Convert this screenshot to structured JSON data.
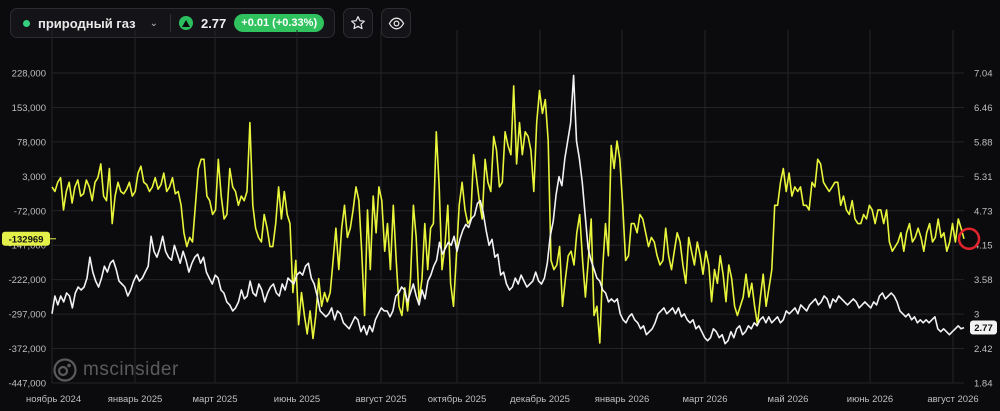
{
  "header": {
    "symbol_name": "природный газ",
    "price": "2.77",
    "change": "+0.01 (+0.33%)",
    "status_color": "#35d07f",
    "icons": [
      "chevron-down-icon",
      "triangle-up-icon",
      "star-icon",
      "eye-icon"
    ]
  },
  "watermark": {
    "brand": "mscinsider"
  },
  "chart_data": {
    "type": "line",
    "left_axis": {
      "ticks": [
        "228,000",
        "153,000",
        "78,000",
        "3,000",
        "-72,000",
        "-147,000",
        "-222,000",
        "-297,000",
        "-372,000",
        "-447,000"
      ],
      "ylim": [
        -447000,
        228000
      ],
      "current_label": "-132969",
      "current_value": -132969,
      "label_color": "#e4f04a"
    },
    "right_axis": {
      "ticks": [
        "7.04",
        "6.46",
        "5.88",
        "5.31",
        "4.73",
        "4.15",
        "3.58",
        "3",
        "2.42",
        "1.84"
      ],
      "ylim": [
        1.84,
        7.04
      ],
      "current_label": "2.77",
      "current_value": 2.77
    },
    "x_ticks": [
      "ноябрь 2024",
      "январь 2025",
      "март 2025",
      "июнь 2025",
      "август 2025",
      "октябрь 2025",
      "декабрь 2025",
      "январь 2026",
      "март 2026",
      "май 2026",
      "июнь 2026",
      "август 2026"
    ],
    "grid": true,
    "series": [
      {
        "color": "#e8f53a",
        "axis": "left",
        "values": [
          -20000,
          -30000,
          -10000,
          0,
          -70000,
          -30000,
          -10000,
          -55000,
          -20000,
          -5000,
          -40000,
          -35000,
          -5000,
          -20000,
          -50000,
          -10000,
          0,
          30000,
          -40000,
          -50000,
          20000,
          -100000,
          -40000,
          -10000,
          -30000,
          -35000,
          -25000,
          -10000,
          -40000,
          -30000,
          10000,
          25000,
          -10000,
          -15000,
          -30000,
          -20000,
          0,
          -25000,
          -15000,
          10000,
          -30000,
          -20000,
          0,
          -35000,
          -30000,
          -60000,
          -120000,
          -150000,
          -130000,
          -140000,
          -60000,
          20000,
          40000,
          40000,
          -40000,
          -50000,
          -80000,
          -70000,
          40000,
          -40000,
          -90000,
          -80000,
          20000,
          -20000,
          -30000,
          -60000,
          -40000,
          -50000,
          -30000,
          120000,
          -60000,
          -110000,
          -130000,
          -140000,
          -80000,
          -110000,
          -150000,
          -150000,
          -100000,
          -20000,
          -90000,
          -30000,
          -80000,
          -100000,
          -250000,
          -180000,
          -320000,
          -250000,
          -300000,
          -340000,
          -290000,
          -350000,
          -300000,
          -220000,
          -280000,
          -250000,
          -270000,
          -250000,
          -180000,
          -110000,
          -200000,
          -110000,
          -60000,
          -130000,
          -110000,
          -70000,
          -20000,
          -50000,
          -160000,
          -300000,
          -70000,
          -200000,
          -40000,
          -120000,
          -20000,
          -50000,
          -160000,
          -100000,
          -200000,
          -60000,
          -180000,
          -280000,
          -300000,
          -240000,
          -290000,
          -220000,
          -60000,
          -130000,
          -270000,
          -220000,
          -100000,
          -200000,
          -110000,
          -100000,
          100000,
          -20000,
          -200000,
          -150000,
          -60000,
          -230000,
          -280000,
          -170000,
          -60000,
          -10000,
          -70000,
          -100000,
          -90000,
          50000,
          0,
          -50000,
          -90000,
          40000,
          -10000,
          -30000,
          90000,
          60000,
          -20000,
          -10000,
          100000,
          70000,
          50000,
          200000,
          30000,
          120000,
          50000,
          100000,
          90000,
          60000,
          -30000,
          120000,
          190000,
          140000,
          170000,
          80000,
          -180000,
          -200000,
          -190000,
          -150000,
          -280000,
          -220000,
          -170000,
          -160000,
          -190000,
          -120000,
          -80000,
          -180000,
          -260000,
          -180000,
          -90000,
          -300000,
          -280000,
          -360000,
          -200000,
          -100000,
          -170000,
          70000,
          20000,
          80000,
          40000,
          -60000,
          -180000,
          -170000,
          -100000,
          -100000,
          -120000,
          -80000,
          -90000,
          -120000,
          -150000,
          -130000,
          -140000,
          -170000,
          -190000,
          -180000,
          -110000,
          -170000,
          -200000,
          -160000,
          -120000,
          -140000,
          -190000,
          -230000,
          -130000,
          -160000,
          -190000,
          -140000,
          -170000,
          -210000,
          -160000,
          -190000,
          -270000,
          -200000,
          -230000,
          -170000,
          -210000,
          -270000,
          -190000,
          -220000,
          -280000,
          -300000,
          -280000,
          -260000,
          -210000,
          -260000,
          -230000,
          -280000,
          -320000,
          -260000,
          -210000,
          -280000,
          -240000,
          -200000,
          -60000,
          -60000,
          -10000,
          20000,
          -30000,
          10000,
          -40000,
          -20000,
          -30000,
          -20000,
          -60000,
          -60000,
          -70000,
          -10000,
          -20000,
          40000,
          30000,
          -10000,
          -20000,
          -30000,
          -20000,
          -10000,
          -10000,
          -60000,
          -40000,
          -70000,
          -80000,
          -50000,
          -90000,
          -100000,
          -100000,
          -80000,
          -90000,
          -60000,
          -70000,
          -100000,
          -70000,
          -70000,
          -100000,
          -70000,
          -140000,
          -160000,
          -150000,
          -140000,
          -120000,
          -160000,
          -120000,
          -100000,
          -140000,
          -130000,
          -110000,
          -130000,
          -160000,
          -120000,
          -100000,
          -140000,
          -130000,
          -90000,
          -130000,
          -120000,
          -160000,
          -140000,
          -100000,
          -140000,
          -90000,
          -110000,
          -132969
        ]
      },
      {
        "color": "#f2f2f2",
        "axis": "right",
        "values": [
          3.0,
          3.3,
          3.15,
          3.3,
          3.2,
          3.35,
          3.3,
          3.1,
          3.35,
          3.45,
          3.4,
          3.45,
          3.6,
          3.95,
          3.7,
          3.55,
          3.45,
          3.6,
          3.8,
          3.7,
          3.85,
          3.9,
          3.75,
          3.55,
          3.5,
          3.45,
          3.3,
          3.4,
          3.55,
          3.65,
          3.55,
          3.6,
          3.7,
          3.8,
          4.3,
          4.05,
          3.95,
          4.1,
          4.3,
          4.05,
          3.95,
          3.9,
          4.15,
          4.0,
          3.85,
          4.05,
          3.9,
          3.7,
          3.85,
          3.95,
          4.0,
          3.85,
          3.95,
          3.7,
          3.6,
          3.5,
          3.65,
          3.6,
          3.4,
          3.35,
          3.2,
          3.15,
          3.05,
          3.1,
          3.2,
          3.4,
          3.25,
          3.3,
          3.55,
          3.35,
          3.3,
          3.5,
          3.4,
          3.2,
          3.35,
          3.45,
          3.5,
          3.35,
          3.3,
          3.5,
          3.4,
          3.6,
          3.55,
          3.5,
          3.65,
          3.7,
          3.65,
          3.8,
          3.85,
          3.6,
          3.5,
          3.3,
          3.05,
          3.0,
          2.95,
          3.0,
          3.1,
          2.9,
          3.05,
          3.0,
          2.85,
          2.8,
          2.75,
          2.85,
          2.95,
          2.9,
          2.7,
          2.8,
          2.65,
          2.8,
          2.7,
          2.9,
          3.0,
          3.1,
          3.05,
          3.05,
          2.95,
          3.05,
          3.3,
          3.35,
          3.45,
          3.4,
          3.2,
          3.35,
          3.5,
          3.3,
          3.15,
          3.4,
          3.25,
          3.55,
          3.65,
          3.8,
          3.9,
          4.2,
          4.0,
          4.1,
          4.2,
          4.15,
          4.3,
          4.05,
          4.25,
          4.4,
          4.5,
          4.45,
          4.6,
          4.65,
          4.85,
          4.9,
          4.7,
          4.4,
          4.15,
          4.25,
          3.95,
          4.0,
          3.65,
          3.7,
          3.5,
          3.4,
          3.45,
          3.6,
          3.5,
          3.65,
          3.55,
          3.45,
          3.5,
          3.55,
          3.7,
          3.55,
          3.5,
          3.6,
          3.85,
          4.3,
          4.55,
          5.0,
          5.3,
          5.15,
          5.6,
          5.9,
          6.2,
          7.0,
          5.9,
          5.6,
          5.2,
          4.65,
          4.1,
          3.9,
          3.75,
          3.6,
          3.55,
          3.4,
          3.35,
          3.2,
          3.25,
          3.2,
          3.25,
          3.0,
          2.9,
          2.85,
          2.95,
          3.0,
          2.9,
          2.85,
          2.75,
          2.8,
          2.65,
          2.7,
          2.75,
          2.85,
          3.0,
          3.05,
          3.1,
          3.0,
          3.05,
          3.1,
          3.0,
          3.1,
          2.95,
          3.0,
          2.9,
          2.85,
          2.9,
          2.75,
          2.8,
          2.7,
          2.6,
          2.55,
          2.6,
          2.75,
          2.7,
          2.6,
          2.65,
          2.5,
          2.55,
          2.7,
          2.6,
          2.75,
          2.8,
          2.65,
          2.7,
          2.8,
          2.75,
          2.85,
          2.8,
          2.9,
          2.95,
          2.85,
          2.95,
          2.85,
          2.9,
          2.95,
          2.85,
          2.9,
          3.05,
          3.0,
          3.05,
          3.1,
          3.0,
          3.15,
          3.1,
          3.05,
          3.15,
          3.2,
          3.25,
          3.15,
          3.2,
          3.3,
          3.25,
          3.1,
          3.25,
          3.2,
          3.3,
          3.25,
          3.2,
          3.15,
          3.2,
          3.25,
          3.2,
          3.1,
          3.15,
          3.2,
          3.15,
          3.1,
          3.2,
          3.15,
          3.3,
          3.35,
          3.25,
          3.3,
          3.35,
          3.3,
          3.2,
          3.05,
          3.0,
          2.95,
          3.0,
          2.9,
          2.95,
          2.85,
          2.9,
          2.85,
          2.9,
          2.85,
          2.9,
          2.95,
          2.75,
          2.7,
          2.75,
          2.7,
          2.65,
          2.7,
          2.75,
          2.8,
          2.75,
          2.77
        ]
      }
    ]
  }
}
